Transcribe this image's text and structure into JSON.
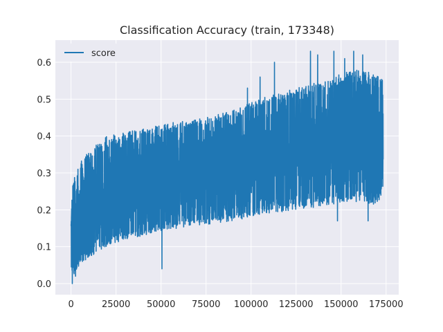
{
  "chart_data": {
    "type": "line",
    "title": "Classification Accuracy (train, 173348)",
    "xlabel": "",
    "ylabel": "",
    "xlim": [
      -8700,
      182000
    ],
    "ylim": [
      -0.03,
      0.66
    ],
    "grid": true,
    "legend_position": "top-left",
    "xticks": [
      0,
      25000,
      50000,
      75000,
      100000,
      125000,
      150000,
      175000
    ],
    "xtick_labels": [
      "0",
      "25000",
      "50000",
      "75000",
      "100000",
      "125000",
      "150000",
      "175000"
    ],
    "yticks": [
      0.0,
      0.1,
      0.2,
      0.3,
      0.4,
      0.5,
      0.6
    ],
    "ytick_labels": [
      "0.0",
      "0.1",
      "0.2",
      "0.3",
      "0.4",
      "0.5",
      "0.6"
    ],
    "series": [
      {
        "name": "score",
        "color": "#1f77b4",
        "envelope": {
          "x": [
            0,
            2000,
            5000,
            10000,
            20000,
            30000,
            40000,
            50000,
            60000,
            75000,
            90000,
            100000,
            110000,
            125000,
            140000,
            150000,
            160000,
            170000,
            173348
          ],
          "upper": [
            0.245,
            0.3,
            0.33,
            0.36,
            0.4,
            0.41,
            0.42,
            0.43,
            0.44,
            0.45,
            0.47,
            0.49,
            0.51,
            0.53,
            0.55,
            0.57,
            0.58,
            0.57,
            0.55
          ],
          "lower": [
            0.0,
            0.03,
            0.05,
            0.07,
            0.1,
            0.12,
            0.13,
            0.14,
            0.15,
            0.16,
            0.17,
            0.18,
            0.19,
            0.2,
            0.21,
            0.22,
            0.22,
            0.21,
            0.25
          ]
        },
        "extremes": [
          {
            "x": 700,
            "y": 0.0
          },
          {
            "x": 2500,
            "y": 0.02
          },
          {
            "x": 50500,
            "y": 0.04
          },
          {
            "x": 98000,
            "y": 0.53
          },
          {
            "x": 105000,
            "y": 0.56
          },
          {
            "x": 113000,
            "y": 0.6
          },
          {
            "x": 133000,
            "y": 0.63
          },
          {
            "x": 137000,
            "y": 0.62
          },
          {
            "x": 146000,
            "y": 0.63
          },
          {
            "x": 152000,
            "y": 0.61
          },
          {
            "x": 157000,
            "y": 0.63
          },
          {
            "x": 162000,
            "y": 0.62
          },
          {
            "x": 148000,
            "y": 0.17
          },
          {
            "x": 165000,
            "y": 0.17
          }
        ]
      }
    ]
  }
}
